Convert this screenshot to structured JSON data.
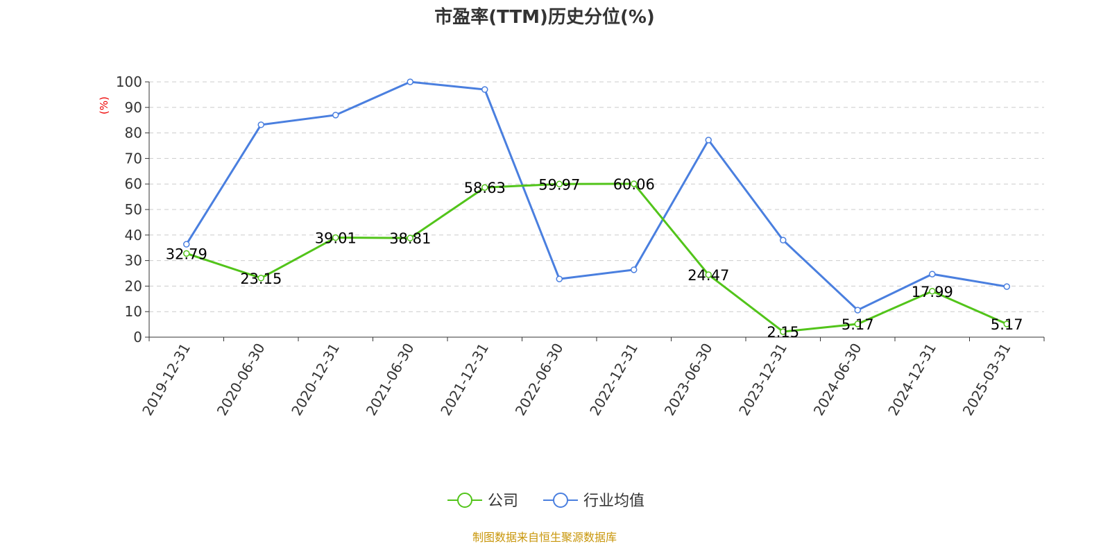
{
  "chart_data": {
    "type": "line",
    "title": "市盈率(TTM)历史分位(%)",
    "ylabel": "(%)",
    "ylim": [
      0,
      100
    ],
    "yticks": [
      0,
      10,
      20,
      30,
      40,
      50,
      60,
      70,
      80,
      90,
      100
    ],
    "grid": true,
    "legend_placement": "bottom",
    "categories": [
      "2019-12-31",
      "2020-06-30",
      "2020-12-31",
      "2021-06-30",
      "2021-12-31",
      "2022-06-30",
      "2022-12-31",
      "2023-06-30",
      "2023-12-31",
      "2024-06-30",
      "2024-12-31",
      "2025-03-31"
    ],
    "series": [
      {
        "name": "公司",
        "color": "#52c41a",
        "show_labels": true,
        "values": [
          32.79,
          23.15,
          39.01,
          38.81,
          58.63,
          59.97,
          60.06,
          24.47,
          2.15,
          5.17,
          17.99,
          5.17
        ]
      },
      {
        "name": "行业均值",
        "color": "#4a7fdf",
        "show_labels": false,
        "values": [
          36.4,
          83.2,
          87.0,
          100,
          97.0,
          22.8,
          26.4,
          77.2,
          38.0,
          10.6,
          24.7,
          19.8
        ]
      }
    ],
    "source": "制图数据来自恒生聚源数据库"
  }
}
